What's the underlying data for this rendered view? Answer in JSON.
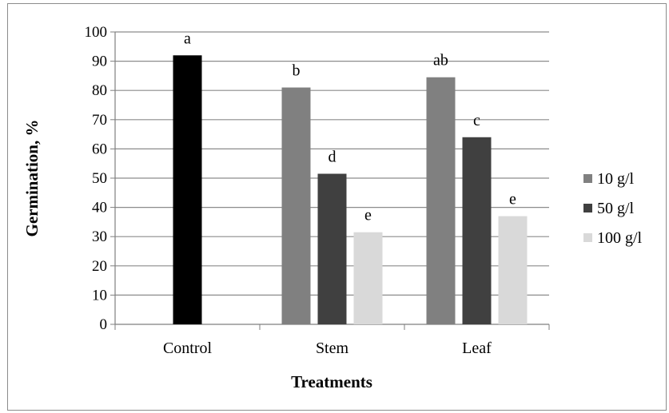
{
  "chart_data": {
    "type": "bar",
    "title": "",
    "xlabel": "Treatments",
    "ylabel": "Germination, %",
    "ylim": [
      0,
      100
    ],
    "yticks": [
      0,
      10,
      20,
      30,
      40,
      50,
      60,
      70,
      80,
      90,
      100
    ],
    "grid": true,
    "legend_position": "right",
    "groups": [
      {
        "category": "Control",
        "bars": [
          {
            "series": null,
            "value": 92,
            "label": "a",
            "color": "#000000"
          }
        ]
      },
      {
        "category": "Stem",
        "bars": [
          {
            "series": "10 g/l",
            "value": 81,
            "label": "b",
            "color": "#808080"
          },
          {
            "series": "50 g/l",
            "value": 51.5,
            "label": "d",
            "color": "#404040"
          },
          {
            "series": "100 g/l",
            "value": 31.5,
            "label": "e",
            "color": "#d9d9d9"
          }
        ]
      },
      {
        "category": "Leaf",
        "bars": [
          {
            "series": "10 g/l",
            "value": 84.5,
            "label": "ab",
            "color": "#808080"
          },
          {
            "series": "50 g/l",
            "value": 64,
            "label": "c",
            "color": "#404040"
          },
          {
            "series": "100 g/l",
            "value": 37,
            "label": "e",
            "color": "#d9d9d9"
          }
        ]
      }
    ],
    "legend": [
      {
        "name": "10 g/l",
        "color": "#808080"
      },
      {
        "name": "50 g/l",
        "color": "#404040"
      },
      {
        "name": "100 g/l",
        "color": "#d9d9d9"
      }
    ]
  }
}
